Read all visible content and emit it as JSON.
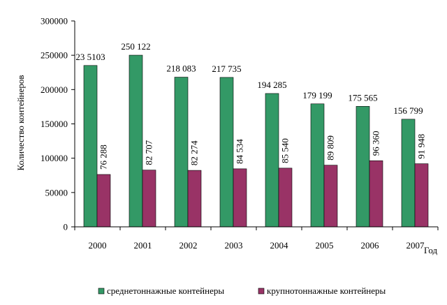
{
  "chart_data": {
    "type": "bar",
    "ylabel": "Количество контейнеров",
    "xlabel": "Год",
    "ylim": [
      0,
      300000
    ],
    "yticks": [
      0,
      50000,
      100000,
      150000,
      200000,
      250000,
      300000
    ],
    "categories": [
      "2000",
      "2001",
      "2002",
      "2003",
      "2004",
      "2005",
      "2006",
      "2007"
    ],
    "series": [
      {
        "name": "среднетоннажные контейнеры",
        "color": "#339966",
        "values": [
          235103,
          250122,
          218083,
          217735,
          194285,
          179199,
          175565,
          156799
        ],
        "labels": [
          "23 5103",
          "250 122",
          "218 083",
          "217 735",
          "194 285",
          "179 199",
          "175 565",
          "156 799"
        ]
      },
      {
        "name": "крупнотоннажные контейнеры",
        "color": "#993366",
        "values": [
          76288,
          82707,
          82274,
          84534,
          85540,
          89809,
          96360,
          91948
        ],
        "labels": [
          "76 288",
          "82 707",
          "82 274",
          "84 534",
          "85 540",
          "89 809",
          "96 360",
          "91 948"
        ]
      }
    ],
    "legend_position": "bottom",
    "grid": false
  }
}
